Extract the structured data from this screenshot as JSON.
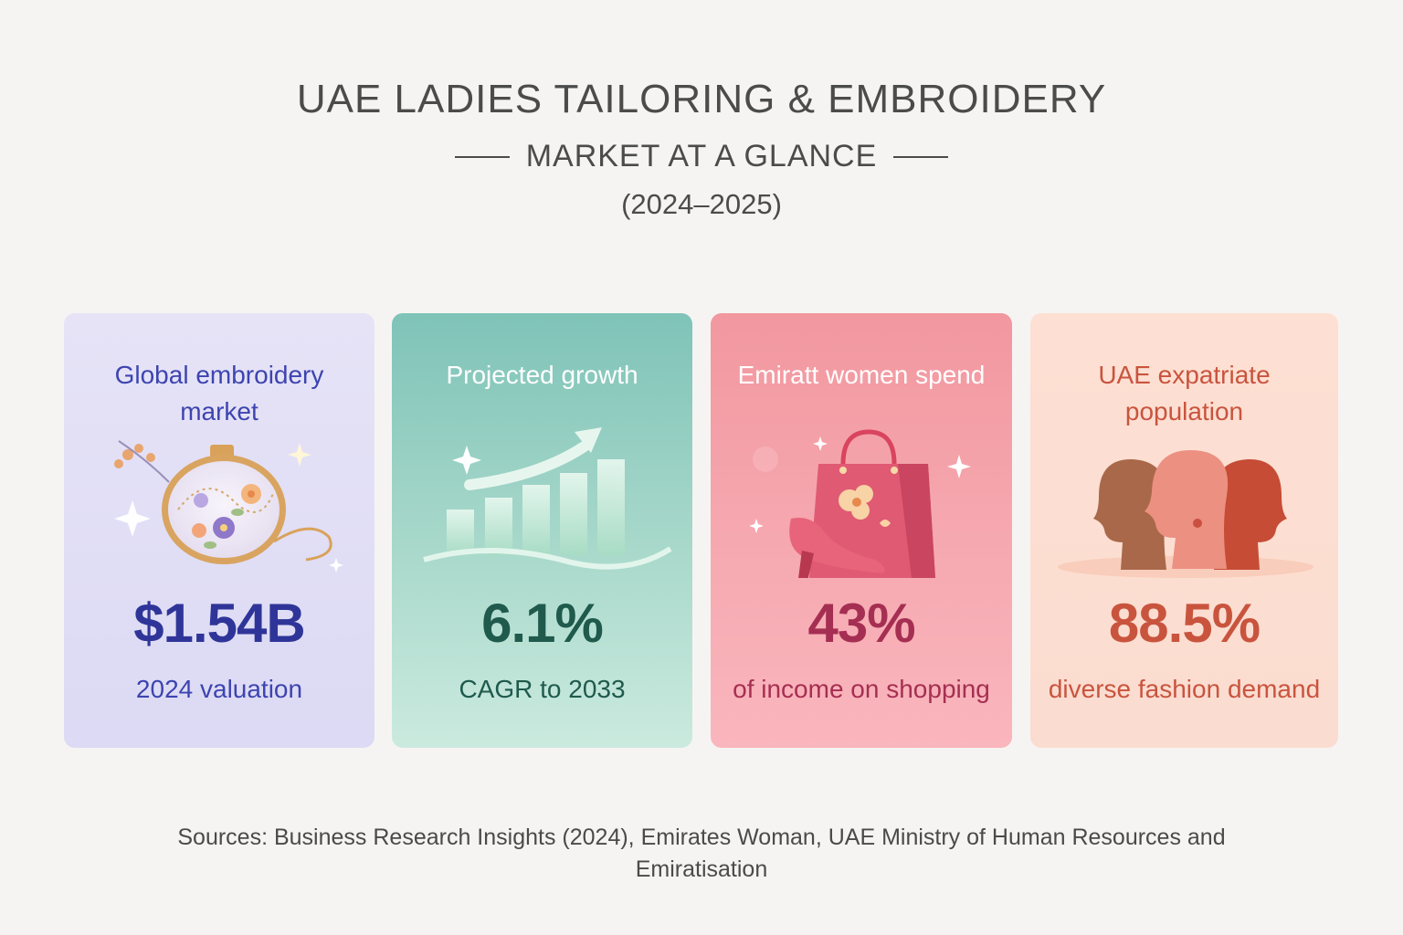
{
  "header": {
    "title": "UAE LADIES TAILORING & EMBROIDERY",
    "subtitle": "MARKET AT A GLANCE",
    "years": "(2024–2025)"
  },
  "cards": [
    {
      "label": "Global embroidery market",
      "value": "$1.54B",
      "caption": "2024 valuation",
      "icon": "embroidery-hoop-icon",
      "colors": {
        "label": "#3d44b0",
        "value": "#2f3598",
        "caption": "#3d44b0"
      }
    },
    {
      "label": "Projected growth",
      "value": "6.1%",
      "caption": "CAGR to 2033",
      "icon": "growth-chart-icon",
      "colors": {
        "label": "#ffffff",
        "value": "#1f5a4c",
        "caption": "#1f5a4c"
      }
    },
    {
      "label": "Emiratt women spend",
      "value": "43%",
      "caption": "of income on shopping",
      "icon": "shopping-bag-heel-icon",
      "colors": {
        "label": "#ffffff",
        "value": "#a52f52",
        "caption": "#a52f52"
      }
    },
    {
      "label": "UAE expatriate population",
      "value": "88.5%",
      "caption": "diverse fashion demand",
      "icon": "women-profiles-icon",
      "colors": {
        "label": "#c9543e",
        "value": "#c9543e",
        "caption": "#c9543e"
      }
    }
  ],
  "sources": "Sources: Business Research Insights (2024), Emirates Woman, UAE Ministry of Human Resources and Emiratisation"
}
